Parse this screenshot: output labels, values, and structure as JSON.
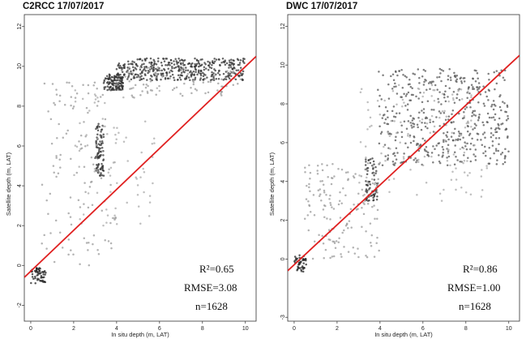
{
  "chart_data": [
    {
      "type": "scatter",
      "title": "C2RCC 17/07/2017",
      "xlabel": "In situ depth (m, LAT)",
      "ylabel": "Satellite depth (m, LAT)",
      "xlim": [
        -0.3,
        10.5
      ],
      "ylim": [
        -2.8,
        12.6
      ],
      "xticks": [
        "0",
        "2",
        "4",
        "6",
        "8",
        "10"
      ],
      "yticks": [
        "-2",
        "0",
        "2",
        "4",
        "6",
        "8",
        "10",
        "12"
      ],
      "grid": false,
      "fit_line": {
        "color": "#e02020",
        "points": [
          [
            -0.3,
            -0.6
          ],
          [
            10.5,
            10.5
          ]
        ]
      },
      "stats": {
        "r2": "R²=0.65",
        "rmse": "RMSE=3.08",
        "n": "n=1628"
      },
      "scatter_clusters": [
        {
          "x": [
            0.0,
            0.7
          ],
          "y": [
            -0.9,
            -0.1
          ],
          "count": 55,
          "color": "#222222"
        },
        {
          "x": [
            3.0,
            3.4
          ],
          "y": [
            4.5,
            7.2
          ],
          "count": 90,
          "color": "#333333"
        },
        {
          "x": [
            3.4,
            4.3
          ],
          "y": [
            8.8,
            9.6
          ],
          "count": 120,
          "color": "#333333"
        },
        {
          "x": [
            4.0,
            10.0
          ],
          "y": [
            9.3,
            10.4
          ],
          "count": 420,
          "color": "#333333"
        },
        {
          "x": [
            0.5,
            4.0
          ],
          "y": [
            0.0,
            9.2
          ],
          "count": 120,
          "color": "#999999"
        },
        {
          "x": [
            2.0,
            6.0
          ],
          "y": [
            2.0,
            9.0
          ],
          "count": 80,
          "color": "#aaaaaa"
        },
        {
          "x": [
            4.0,
            10.0
          ],
          "y": [
            8.4,
            10.0
          ],
          "count": 90,
          "color": "#999999"
        }
      ]
    },
    {
      "type": "scatter",
      "title": "DWC 17/07/2017",
      "xlabel": "In situ depth (m, LAT)",
      "ylabel": "Satellite depth (m, LAT)",
      "xlim": [
        -0.3,
        10.5
      ],
      "ylim": [
        -3.2,
        12.6
      ],
      "xticks": [
        "0",
        "2",
        "4",
        "6",
        "8",
        "10"
      ],
      "yticks": [
        "-3",
        "0",
        "2",
        "4",
        "6",
        "8",
        "10",
        "12"
      ],
      "grid": false,
      "fit_line": {
        "color": "#e02020",
        "points": [
          [
            -0.3,
            -0.6
          ],
          [
            10.5,
            10.5
          ]
        ]
      },
      "stats": {
        "r2": "R²=0.86",
        "rmse": "RMSE=1.00",
        "n": "n=1628"
      },
      "scatter_clusters": [
        {
          "x": [
            0.0,
            0.6
          ],
          "y": [
            -0.7,
            0.2
          ],
          "count": 45,
          "color": "#222222"
        },
        {
          "x": [
            3.3,
            3.9
          ],
          "y": [
            3.0,
            5.2
          ],
          "count": 70,
          "color": "#333333"
        },
        {
          "x": [
            3.9,
            10.0
          ],
          "y": [
            4.8,
            9.8
          ],
          "count": 480,
          "color": "#555555"
        },
        {
          "x": [
            0.5,
            4.0
          ],
          "y": [
            0.0,
            5.0
          ],
          "count": 160,
          "color": "#999999"
        },
        {
          "x": [
            3.0,
            9.0
          ],
          "y": [
            3.0,
            9.0
          ],
          "count": 140,
          "color": "#aaaaaa"
        }
      ]
    }
  ]
}
